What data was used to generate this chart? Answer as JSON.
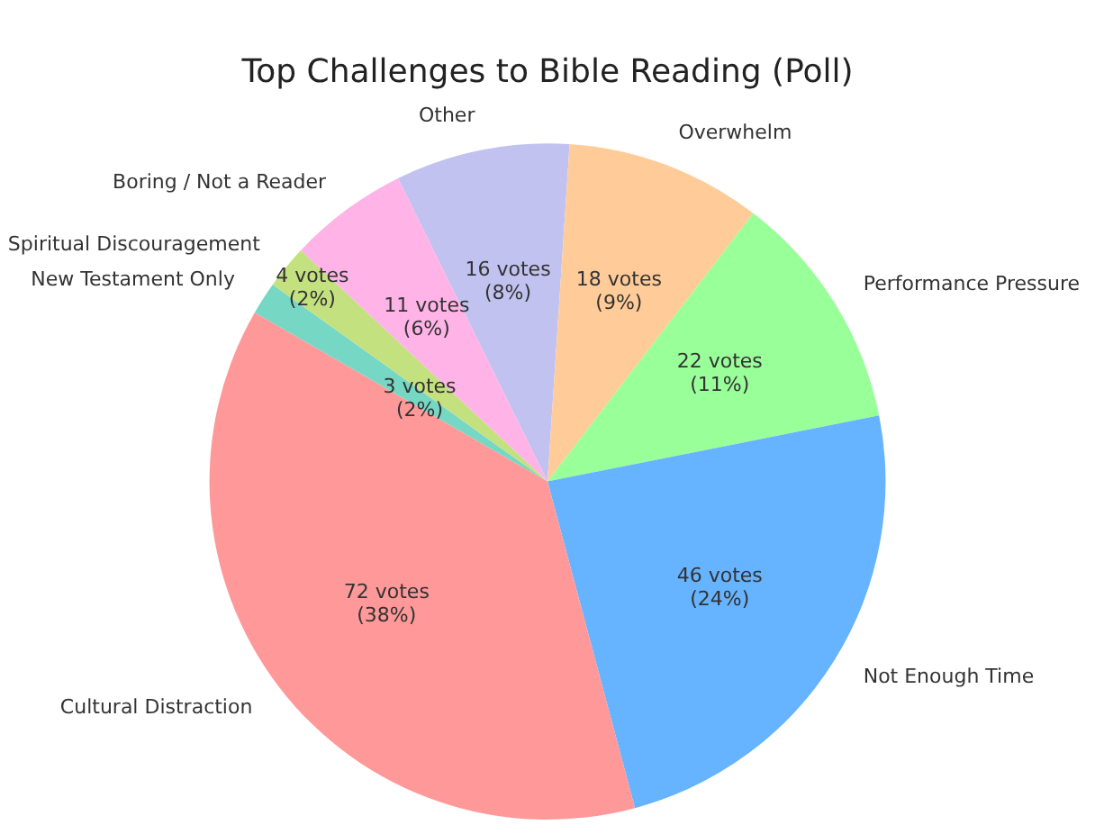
{
  "chart_data": {
    "type": "pie",
    "title": "Top Challenges to Bible Reading (Poll)",
    "categories": [
      "Other",
      "Overwhelm",
      "Performance Pressure",
      "Not Enough Time",
      "Cultural Distraction",
      "New Testament Only",
      "Spiritual Discouragement",
      "Boring / Not a Reader"
    ],
    "values": [
      16,
      18,
      22,
      46,
      72,
      3,
      4,
      11
    ],
    "colors": [
      "#c2c2f0",
      "#ffcc99",
      "#99ff99",
      "#66b3ff",
      "#ff9999",
      "#76d7c4",
      "#c4e17f",
      "#ffb3e6"
    ],
    "value_labels": [
      "16 votes\n(8%)",
      "18 votes\n(9%)",
      "22 votes\n(11%)",
      "46 votes\n(24%)",
      "72 votes\n(38%)",
      "3 votes\n(2%)",
      "4 votes\n(2%)",
      "11 votes\n(6%)"
    ],
    "legend": false
  }
}
